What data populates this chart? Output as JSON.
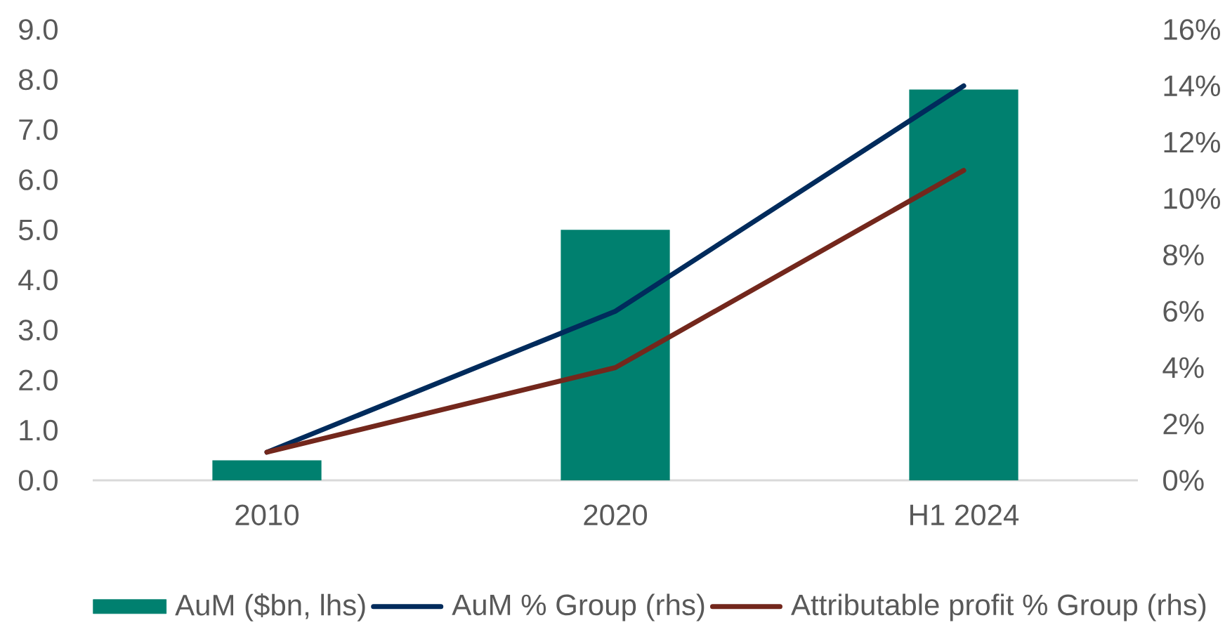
{
  "chart_data": {
    "type": "bar",
    "categories": [
      "2010",
      "2020",
      "H1 2024"
    ],
    "series": [
      {
        "name": "AuM ($bn, lhs)",
        "color": "#00806F",
        "values": [
          0.4,
          5.0,
          7.8
        ]
      },
      {
        "name": "AuM % Group (rhs)",
        "type": "line",
        "axis": "y2",
        "color": "#002B5C",
        "values": [
          1,
          6,
          14
        ]
      },
      {
        "name": "Attributable profit % Group (rhs)",
        "type": "line",
        "axis": "y2",
        "color": "#73271C",
        "values": [
          1,
          4,
          11
        ]
      }
    ],
    "ylim": [
      0,
      9
    ],
    "yticks": [
      {
        "value": 0,
        "label": "0.0"
      },
      {
        "value": 1,
        "label": "1.0"
      },
      {
        "value": 2,
        "label": "2.0"
      },
      {
        "value": 3,
        "label": "3.0"
      },
      {
        "value": 4,
        "label": "4.0"
      },
      {
        "value": 5,
        "label": "5.0"
      },
      {
        "value": 6,
        "label": "6.0"
      },
      {
        "value": 7,
        "label": "7.0"
      },
      {
        "value": 8,
        "label": "8.0"
      },
      {
        "value": 9,
        "label": "9.0"
      }
    ],
    "y2lim": [
      0,
      16
    ],
    "y2ticks": [
      {
        "value": 0,
        "label": "0%"
      },
      {
        "value": 2,
        "label": "2%"
      },
      {
        "value": 4,
        "label": "4%"
      },
      {
        "value": 6,
        "label": "6%"
      },
      {
        "value": 8,
        "label": "8%"
      },
      {
        "value": 10,
        "label": "10%"
      },
      {
        "value": 12,
        "label": "12%"
      },
      {
        "value": 14,
        "label": "14%"
      },
      {
        "value": 16,
        "label": "16%"
      }
    ],
    "legend": "bottom"
  }
}
